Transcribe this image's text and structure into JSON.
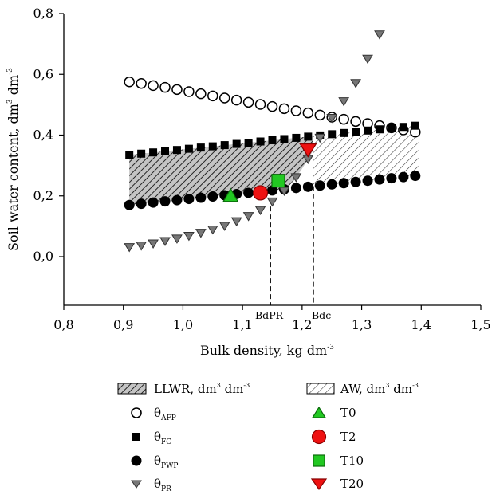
{
  "chart_data": {
    "type": "scatter",
    "xlabel": "Bulk density, kg dm",
    "xlabel_sup": "-3",
    "ylabel": "Soil water content, dm",
    "ylabel_sup1": "3",
    "ylabel_mid": " dm",
    "ylabel_sup2": "-3",
    "xlim": [
      0.8,
      1.5
    ],
    "ylim": [
      -0.16,
      0.8
    ],
    "xticks": [
      {
        "v": 0.8,
        "label": "0,8"
      },
      {
        "v": 0.9,
        "label": "0,9"
      },
      {
        "v": 1.0,
        "label": "1,0"
      },
      {
        "v": 1.1,
        "label": "1,1"
      },
      {
        "v": 1.2,
        "label": "1,2"
      },
      {
        "v": 1.3,
        "label": "1,3"
      },
      {
        "v": 1.4,
        "label": "1,4"
      },
      {
        "v": 1.5,
        "label": "1,5"
      }
    ],
    "yticks": [
      {
        "v": 0.0,
        "label": "0,0"
      },
      {
        "v": 0.2,
        "label": "0,2"
      },
      {
        "v": 0.4,
        "label": "0,4"
      },
      {
        "v": 0.6,
        "label": "0,6"
      },
      {
        "v": 0.8,
        "label": "0,8"
      }
    ],
    "grid": false,
    "legend_position": "bottom",
    "reference_lines": [
      {
        "name": "BdPR",
        "x": 1.147
      },
      {
        "name": "Bdc",
        "x": 1.219
      }
    ],
    "areas": [
      {
        "name": "LLWR",
        "x_start": 0.91,
        "x_end": 1.219
      },
      {
        "name": "AW",
        "x_start": 1.219,
        "x_end": 1.395
      }
    ],
    "series": [
      {
        "name": "θAFP",
        "marker": "open-circle",
        "x": [
          0.91,
          0.93,
          0.95,
          0.97,
          0.99,
          1.01,
          1.03,
          1.05,
          1.07,
          1.09,
          1.11,
          1.13,
          1.15,
          1.17,
          1.19,
          1.21,
          1.23,
          1.25,
          1.27,
          1.29,
          1.31,
          1.33,
          1.35,
          1.37,
          1.39
        ],
        "y": [
          0.575,
          0.57,
          0.563,
          0.557,
          0.55,
          0.543,
          0.536,
          0.529,
          0.522,
          0.515,
          0.508,
          0.501,
          0.494,
          0.487,
          0.48,
          0.473,
          0.466,
          0.459,
          0.452,
          0.445,
          0.438,
          0.431,
          0.424,
          0.417,
          0.41
        ]
      },
      {
        "name": "θFC",
        "marker": "square",
        "x": [
          0.91,
          0.93,
          0.95,
          0.97,
          0.99,
          1.01,
          1.03,
          1.05,
          1.07,
          1.09,
          1.11,
          1.13,
          1.15,
          1.17,
          1.19,
          1.21,
          1.23,
          1.25,
          1.27,
          1.29,
          1.31,
          1.33,
          1.35,
          1.37,
          1.39
        ],
        "y": [
          0.335,
          0.339,
          0.343,
          0.347,
          0.351,
          0.355,
          0.359,
          0.363,
          0.367,
          0.371,
          0.375,
          0.379,
          0.383,
          0.387,
          0.391,
          0.395,
          0.399,
          0.403,
          0.407,
          0.411,
          0.415,
          0.419,
          0.423,
          0.427,
          0.431
        ]
      },
      {
        "name": "θPWP",
        "marker": "filled-circle",
        "x": [
          0.91,
          0.93,
          0.95,
          0.97,
          0.99,
          1.01,
          1.03,
          1.05,
          1.07,
          1.09,
          1.11,
          1.13,
          1.15,
          1.17,
          1.19,
          1.21,
          1.23,
          1.25,
          1.27,
          1.29,
          1.31,
          1.33,
          1.35,
          1.37,
          1.39
        ],
        "y": [
          0.17,
          0.174,
          0.178,
          0.182,
          0.186,
          0.19,
          0.194,
          0.198,
          0.202,
          0.206,
          0.21,
          0.214,
          0.218,
          0.222,
          0.226,
          0.23,
          0.234,
          0.238,
          0.242,
          0.246,
          0.25,
          0.254,
          0.258,
          0.262,
          0.266
        ]
      },
      {
        "name": "θPR",
        "marker": "down-triangle",
        "x": [
          0.91,
          0.93,
          0.95,
          0.97,
          0.99,
          1.01,
          1.03,
          1.05,
          1.07,
          1.09,
          1.11,
          1.13,
          1.15,
          1.17,
          1.19,
          1.21,
          1.23,
          1.25,
          1.27,
          1.29,
          1.31,
          1.33
        ],
        "y": [
          0.03,
          0.035,
          0.042,
          0.05,
          0.058,
          0.067,
          0.077,
          0.088,
          0.1,
          0.115,
          0.132,
          0.152,
          0.18,
          0.215,
          0.26,
          0.32,
          0.39,
          0.455,
          0.51,
          0.57,
          0.65,
          0.73
        ]
      },
      {
        "name": "T0",
        "marker": "up-triangle",
        "color": "#22c822",
        "x": [
          1.08
        ],
        "y": [
          0.2
        ]
      },
      {
        "name": "T2",
        "marker": "circle",
        "color": "#ee1111",
        "x": [
          1.13
        ],
        "y": [
          0.21
        ]
      },
      {
        "name": "T10",
        "marker": "square",
        "color": "#22c822",
        "x": [
          1.16
        ],
        "y": [
          0.25
        ]
      },
      {
        "name": "T20",
        "marker": "down-triangle",
        "color": "#ee1111",
        "x": [
          1.21
        ],
        "y": [
          0.35
        ]
      }
    ],
    "legend": {
      "llwr_label": "LLWR, dm",
      "llwr_sup1": "3",
      "llwr_mid": " dm",
      "llwr_sup2": "-3",
      "aw_label": "AW, dm",
      "aw_sup1": "3",
      "aw_mid": " dm",
      "aw_sup2": "-3",
      "afp_base": "θ",
      "afp_sub": "AFP",
      "fc_base": "θ",
      "fc_sub": "FC",
      "pwp_base": "θ",
      "pwp_sub": "PWP",
      "pr_base": "θ",
      "pr_sub": "PR",
      "t0": "T0",
      "t2": "T2",
      "t10": "T10",
      "t20": "T20"
    }
  }
}
